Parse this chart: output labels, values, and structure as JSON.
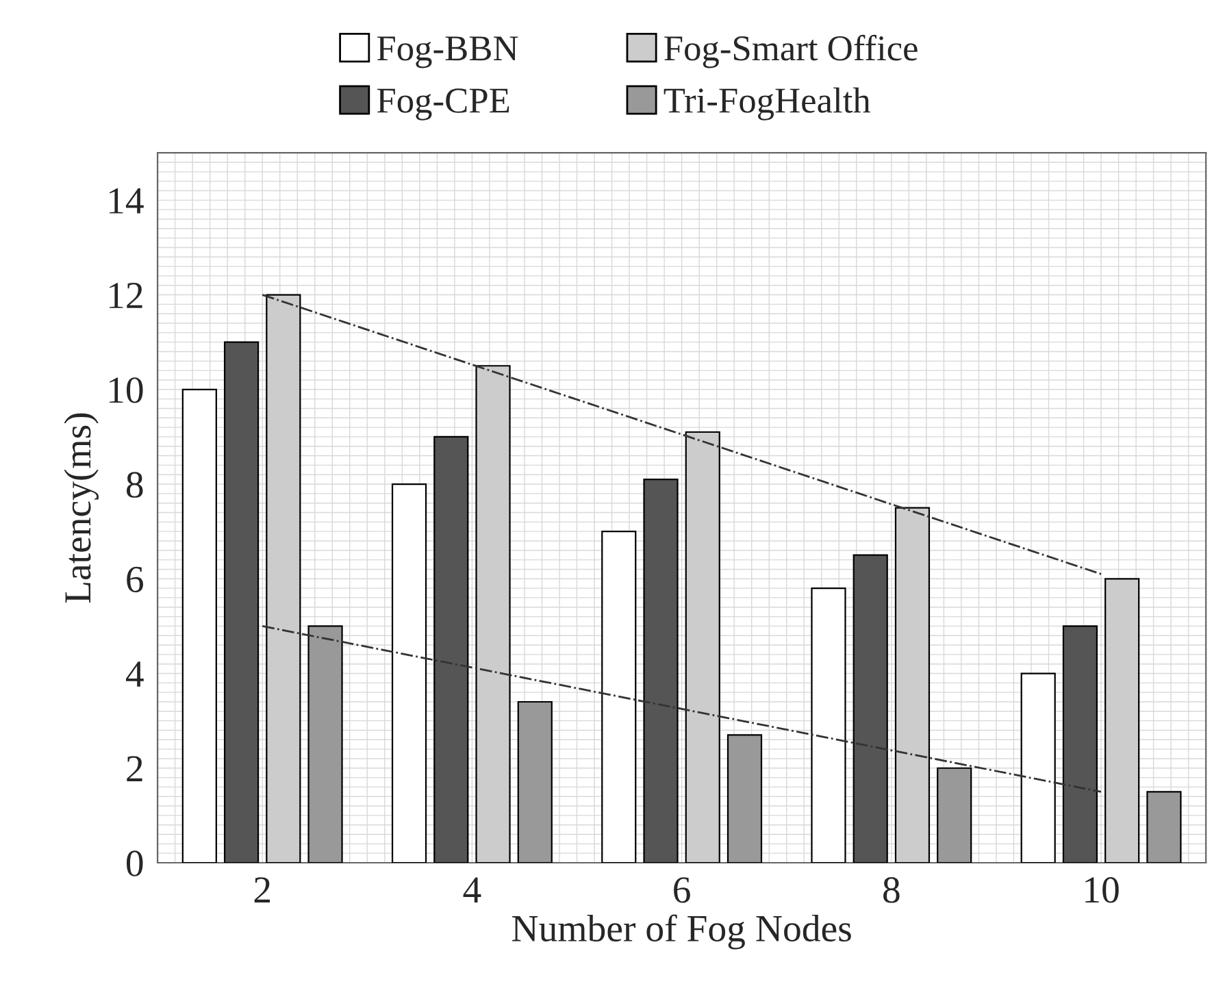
{
  "chart_data": {
    "type": "bar",
    "xlabel": "Number of Fog Nodes",
    "ylabel": "Latency(ms)",
    "categories": [
      "2",
      "4",
      "6",
      "8",
      "10"
    ],
    "series": [
      {
        "name": "Fog-BBN",
        "color": "#ffffff",
        "values": [
          10,
          8,
          7,
          5.8,
          4
        ]
      },
      {
        "name": "Fog-CPE",
        "color": "#555555",
        "values": [
          11,
          9,
          8.1,
          6.5,
          5
        ]
      },
      {
        "name": "Fog-Smart Office",
        "color": "#cccccc",
        "values": [
          12,
          10.5,
          9.1,
          7.5,
          6
        ]
      },
      {
        "name": "Tri-FogHealth",
        "color": "#999999",
        "values": [
          5,
          3.4,
          2.7,
          2,
          1.5
        ]
      },
      {
        "type": "line",
        "color": "#333333",
        "line_style": "dashdot",
        "x": [
          "2",
          "10"
        ],
        "values": [
          12,
          6.1
        ]
      },
      {
        "type": "line",
        "color": "#333333",
        "line_style": "dashdot",
        "x": [
          "2",
          "10"
        ],
        "values": [
          5,
          1.5
        ]
      }
    ],
    "ylim": [
      0,
      15
    ],
    "yticks": [
      0,
      2,
      4,
      6,
      8,
      10,
      12,
      14
    ],
    "grid": true,
    "legend": "top"
  }
}
